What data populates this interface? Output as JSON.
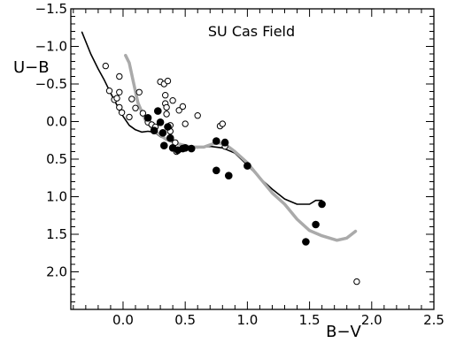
{
  "chart_data": {
    "type": "scatter",
    "title": "SU Cas Field",
    "xlabel": "B−V",
    "ylabel": "U−B",
    "xlim": [
      -0.42,
      2.5
    ],
    "ylim": [
      2.5,
      -1.5
    ],
    "y_inverted": true,
    "grid": false,
    "x_ticks": [
      0.0,
      0.5,
      1.0,
      1.5,
      2.0,
      2.5
    ],
    "x_tick_labels": [
      "0.0",
      "0.5",
      "1.0",
      "1.5",
      "2.0",
      "2.5"
    ],
    "y_ticks": [
      -1.5,
      -1.0,
      -0.5,
      0.0,
      0.5,
      1.0,
      1.5,
      2.0
    ],
    "y_tick_labels": [
      "−1.5",
      "−1.0",
      "−0.5",
      "0.0",
      "0.5",
      "1.0",
      "1.5",
      "2.0"
    ],
    "series": [
      {
        "marker": "open-circle",
        "color": "#000000",
        "points": [
          [
            -0.14,
            -0.74
          ],
          [
            -0.11,
            -0.41
          ],
          [
            -0.07,
            -0.29
          ],
          [
            -0.05,
            -0.31
          ],
          [
            -0.03,
            -0.39
          ],
          [
            -0.03,
            -0.6
          ],
          [
            -0.03,
            -0.19
          ],
          [
            -0.01,
            -0.12
          ],
          [
            0.05,
            -0.06
          ],
          [
            0.07,
            -0.3
          ],
          [
            0.1,
            -0.18
          ],
          [
            0.13,
            -0.39
          ],
          [
            0.16,
            -0.11
          ],
          [
            0.2,
            0.01
          ],
          [
            0.23,
            0.04
          ],
          [
            0.26,
            0.07
          ],
          [
            0.3,
            -0.53
          ],
          [
            0.33,
            -0.5
          ],
          [
            0.34,
            -0.35
          ],
          [
            0.34,
            -0.24
          ],
          [
            0.35,
            -0.19
          ],
          [
            0.35,
            -0.1
          ],
          [
            0.36,
            -0.54
          ],
          [
            0.38,
            0.05
          ],
          [
            0.38,
            0.13
          ],
          [
            0.4,
            -0.28
          ],
          [
            0.42,
            0.28
          ],
          [
            0.43,
            0.4
          ],
          [
            0.45,
            -0.15
          ],
          [
            0.48,
            -0.2
          ],
          [
            0.5,
            0.03
          ],
          [
            0.6,
            -0.08
          ],
          [
            0.78,
            0.06
          ],
          [
            0.8,
            0.03
          ],
          [
            0.82,
            0.27
          ],
          [
            1.88,
            2.13
          ],
          [
            0.82,
            0.33
          ]
        ]
      },
      {
        "marker": "filled-circle",
        "color": "#000000",
        "points": [
          [
            0.2,
            -0.05
          ],
          [
            0.25,
            0.12
          ],
          [
            0.28,
            -0.14
          ],
          [
            0.3,
            0.01
          ],
          [
            0.32,
            0.15
          ],
          [
            0.33,
            0.32
          ],
          [
            0.36,
            0.07
          ],
          [
            0.38,
            0.22
          ],
          [
            0.4,
            0.35
          ],
          [
            0.44,
            0.38
          ],
          [
            0.48,
            0.36
          ],
          [
            0.5,
            0.35
          ],
          [
            0.55,
            0.36
          ],
          [
            0.75,
            0.26
          ],
          [
            0.75,
            0.65
          ],
          [
            0.82,
            0.28
          ],
          [
            0.85,
            0.72
          ],
          [
            1.0,
            0.59
          ],
          [
            1.47,
            1.6
          ],
          [
            1.55,
            1.37
          ],
          [
            1.6,
            1.1
          ]
        ]
      },
      {
        "type": "line",
        "color": "#000000",
        "points": [
          [
            -0.33,
            -1.19
          ],
          [
            -0.26,
            -0.9
          ],
          [
            -0.2,
            -0.7
          ],
          [
            -0.15,
            -0.55
          ],
          [
            -0.1,
            -0.38
          ],
          [
            -0.05,
            -0.22
          ],
          [
            0.0,
            -0.07
          ],
          [
            0.05,
            0.05
          ],
          [
            0.1,
            0.11
          ],
          [
            0.15,
            0.14
          ],
          [
            0.2,
            0.13
          ],
          [
            0.25,
            0.14
          ],
          [
            0.3,
            0.2
          ],
          [
            0.4,
            0.28
          ],
          [
            0.5,
            0.34
          ],
          [
            0.6,
            0.35
          ],
          [
            0.7,
            0.33
          ],
          [
            0.8,
            0.35
          ],
          [
            0.9,
            0.42
          ],
          [
            1.0,
            0.58
          ],
          [
            1.1,
            0.75
          ],
          [
            1.2,
            0.9
          ],
          [
            1.3,
            1.03
          ],
          [
            1.4,
            1.1
          ],
          [
            1.5,
            1.1
          ],
          [
            1.55,
            1.05
          ],
          [
            1.6,
            1.05
          ]
        ]
      },
      {
        "type": "line",
        "color": "#aaaaaa",
        "width": "thick",
        "points": [
          [
            0.02,
            -0.88
          ],
          [
            0.05,
            -0.78
          ],
          [
            0.08,
            -0.55
          ],
          [
            0.12,
            -0.25
          ],
          [
            0.18,
            -0.02
          ],
          [
            0.25,
            0.12
          ],
          [
            0.35,
            0.24
          ],
          [
            0.45,
            0.3
          ],
          [
            0.55,
            0.34
          ],
          [
            0.65,
            0.34
          ],
          [
            0.75,
            0.28
          ],
          [
            0.82,
            0.3
          ],
          [
            0.9,
            0.4
          ],
          [
            1.0,
            0.55
          ],
          [
            1.1,
            0.75
          ],
          [
            1.2,
            0.95
          ],
          [
            1.3,
            1.1
          ],
          [
            1.4,
            1.3
          ],
          [
            1.5,
            1.45
          ],
          [
            1.6,
            1.52
          ],
          [
            1.72,
            1.58
          ],
          [
            1.8,
            1.55
          ],
          [
            1.87,
            1.46
          ]
        ]
      }
    ]
  }
}
